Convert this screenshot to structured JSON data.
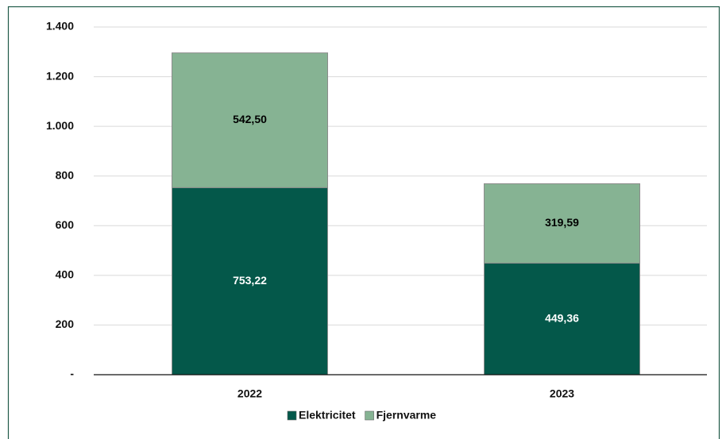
{
  "chart_data": {
    "type": "stacked_bar",
    "categories": [
      "2022",
      "2023"
    ],
    "series": [
      {
        "name": "Elektricitet",
        "color": "#04584a",
        "label_color": "#ffffff",
        "values": [
          753.22,
          449.36
        ],
        "value_labels": [
          "753,22",
          "449,36"
        ]
      },
      {
        "name": "Fjernvarme",
        "color": "#86b393",
        "label_color": "#000000",
        "values": [
          542.5,
          319.59
        ],
        "value_labels": [
          "542,50",
          "319,59"
        ]
      }
    ],
    "ylim": [
      0,
      1400
    ],
    "yticks": [
      {
        "value": 0,
        "label": "-"
      },
      200,
      400,
      600,
      800,
      {
        "value": 1000,
        "label": "1.000"
      },
      {
        "value": 1200,
        "label": "1.200"
      },
      {
        "value": 1400,
        "label": "1.400"
      }
    ],
    "grid": true,
    "legend": "bottom"
  }
}
